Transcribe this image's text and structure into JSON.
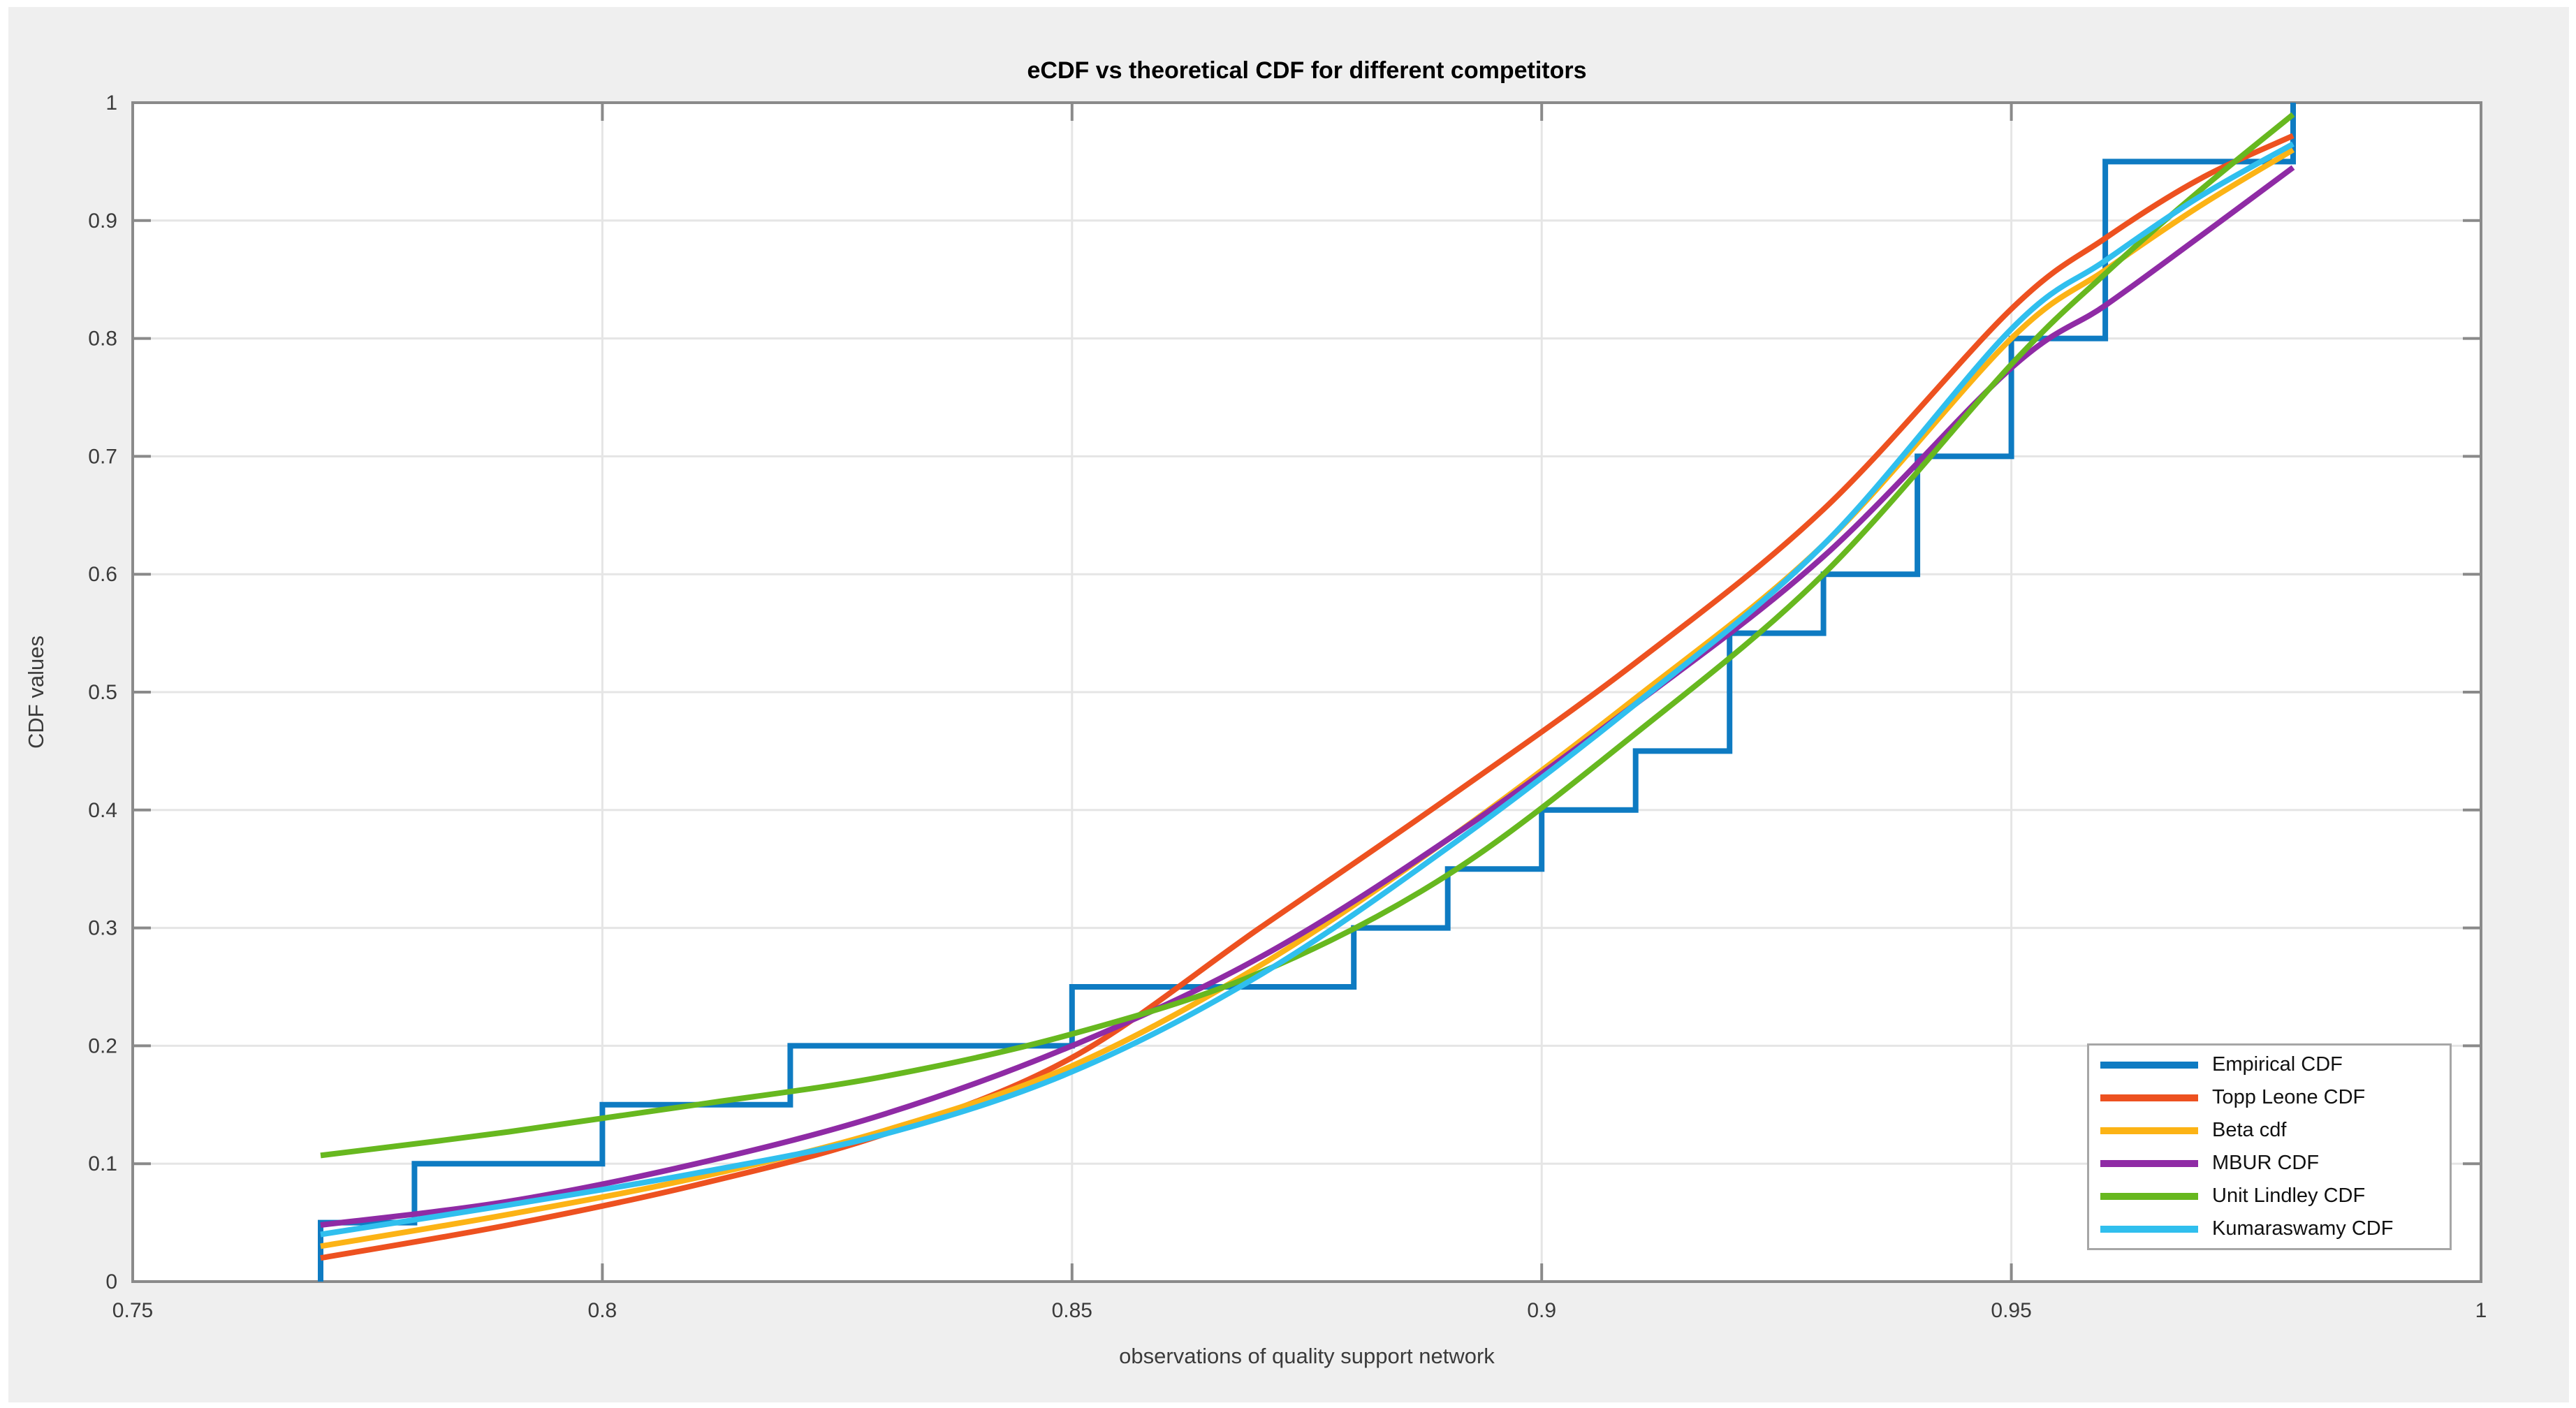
{
  "window": {
    "background_color": "#efefef",
    "frame_color": "#ffffff"
  },
  "chart_data": {
    "type": "line",
    "title": "eCDF vs theoretical CDF for different competitors",
    "xlabel": "observations of quality support network",
    "ylabel": "CDF values",
    "xlim": [
      0.75,
      1.0
    ],
    "ylim": [
      0,
      1
    ],
    "grid": true,
    "legend_position": "inside-bottom-right",
    "x_ticks": {
      "values": [
        0.75,
        0.8,
        0.85,
        0.9,
        0.95,
        1
      ],
      "labels": [
        "0.75",
        "0.8",
        "0.85",
        "0.9",
        "0.95",
        "1"
      ]
    },
    "y_ticks": {
      "values": [
        0,
        0.1,
        0.2,
        0.3,
        0.4,
        0.5,
        0.6,
        0.7,
        0.8,
        0.9,
        1
      ],
      "labels": [
        "0",
        "0.1",
        "0.2",
        "0.3",
        "0.4",
        "0.5",
        "0.6",
        "0.7",
        "0.8",
        "0.9",
        "1"
      ]
    },
    "colors": {
      "grid": "#e5e5e5",
      "axis_box": "#8a8a8a",
      "plot_background": "#ffffff",
      "tick_text": "#3b3b3b"
    },
    "series": [
      {
        "name": "Empirical CDF",
        "color": "#0e7bc2",
        "style": "step",
        "step_points": [
          [
            0.77,
            0.05
          ],
          [
            0.78,
            0.1
          ],
          [
            0.8,
            0.15
          ],
          [
            0.82,
            0.2
          ],
          [
            0.85,
            0.25
          ],
          [
            0.88,
            0.3
          ],
          [
            0.89,
            0.35
          ],
          [
            0.9,
            0.4
          ],
          [
            0.91,
            0.45
          ],
          [
            0.92,
            0.55
          ],
          [
            0.93,
            0.6
          ],
          [
            0.94,
            0.7
          ],
          [
            0.95,
            0.8
          ],
          [
            0.96,
            0.95
          ],
          [
            0.98,
            1.0
          ]
        ]
      },
      {
        "name": "Topp Leone CDF",
        "color": "#ed5120",
        "style": "smooth",
        "x": [
          0.77,
          0.79,
          0.81,
          0.83,
          0.85,
          0.87,
          0.89,
          0.91,
          0.93,
          0.95,
          0.96,
          0.97,
          0.98
        ],
        "y": [
          0.02,
          0.048,
          0.082,
          0.125,
          0.19,
          0.3,
          0.41,
          0.525,
          0.655,
          0.825,
          0.885,
          0.935,
          0.972
        ]
      },
      {
        "name": "Beta cdf",
        "color": "#fcb315",
        "style": "smooth",
        "x": [
          0.77,
          0.79,
          0.81,
          0.83,
          0.85,
          0.87,
          0.89,
          0.91,
          0.93,
          0.95,
          0.96,
          0.97,
          0.98
        ],
        "y": [
          0.03,
          0.057,
          0.088,
          0.128,
          0.183,
          0.268,
          0.375,
          0.495,
          0.625,
          0.8,
          0.858,
          0.912,
          0.96
        ]
      },
      {
        "name": "MBUR CDF",
        "color": "#8f2ba5",
        "style": "smooth",
        "x": [
          0.77,
          0.79,
          0.81,
          0.83,
          0.85,
          0.87,
          0.89,
          0.91,
          0.93,
          0.95,
          0.96,
          0.97,
          0.98
        ],
        "y": [
          0.048,
          0.068,
          0.1,
          0.142,
          0.2,
          0.275,
          0.375,
          0.49,
          0.615,
          0.775,
          0.828,
          0.886,
          0.945
        ]
      },
      {
        "name": "Unit Lindley CDF",
        "color": "#67b81f",
        "style": "smooth",
        "x": [
          0.77,
          0.79,
          0.81,
          0.83,
          0.85,
          0.87,
          0.89,
          0.91,
          0.93,
          0.95,
          0.96,
          0.97,
          0.98
        ],
        "y": [
          0.107,
          0.127,
          0.15,
          0.174,
          0.21,
          0.262,
          0.345,
          0.465,
          0.6,
          0.778,
          0.855,
          0.925,
          0.99
        ]
      },
      {
        "name": "Kumaraswamy CDF",
        "color": "#30bfee",
        "style": "smooth",
        "x": [
          0.77,
          0.79,
          0.81,
          0.83,
          0.85,
          0.87,
          0.89,
          0.91,
          0.93,
          0.95,
          0.96,
          0.97,
          0.98
        ],
        "y": [
          0.04,
          0.065,
          0.092,
          0.125,
          0.178,
          0.26,
          0.368,
          0.49,
          0.625,
          0.808,
          0.866,
          0.92,
          0.965
        ]
      }
    ]
  }
}
